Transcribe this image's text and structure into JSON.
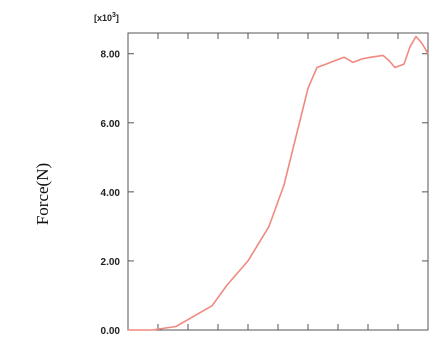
{
  "chart_data": {
    "type": "line",
    "title": "",
    "xlabel": "",
    "ylabel": "Force(N)",
    "y_multiplier_label": "[x10",
    "y_multiplier_exp": "3",
    "y_multiplier_close": "]",
    "ylim": [
      0,
      8.6
    ],
    "xlim": [
      0,
      100
    ],
    "y_ticks": [
      "0.00",
      "2.00",
      "4.00",
      "6.00",
      "8.00"
    ],
    "y_tick_values": [
      0,
      2,
      4,
      6,
      8
    ],
    "x_tick_count": 11,
    "grid": false,
    "series": [
      {
        "color": "#f08a80",
        "x": [
          0,
          8,
          16,
          20,
          24,
          28,
          33,
          40,
          47,
          52,
          56,
          60,
          63,
          66,
          69,
          72,
          75,
          78,
          81,
          85,
          87,
          89,
          92,
          94,
          96,
          98,
          100
        ],
        "y": [
          0.0,
          0.0,
          0.1,
          0.3,
          0.5,
          0.7,
          1.3,
          2.0,
          3.0,
          4.2,
          5.6,
          7.0,
          7.6,
          7.7,
          7.8,
          7.9,
          7.75,
          7.85,
          7.9,
          7.95,
          7.8,
          7.6,
          7.7,
          8.2,
          8.5,
          8.3,
          8.0
        ]
      }
    ]
  }
}
